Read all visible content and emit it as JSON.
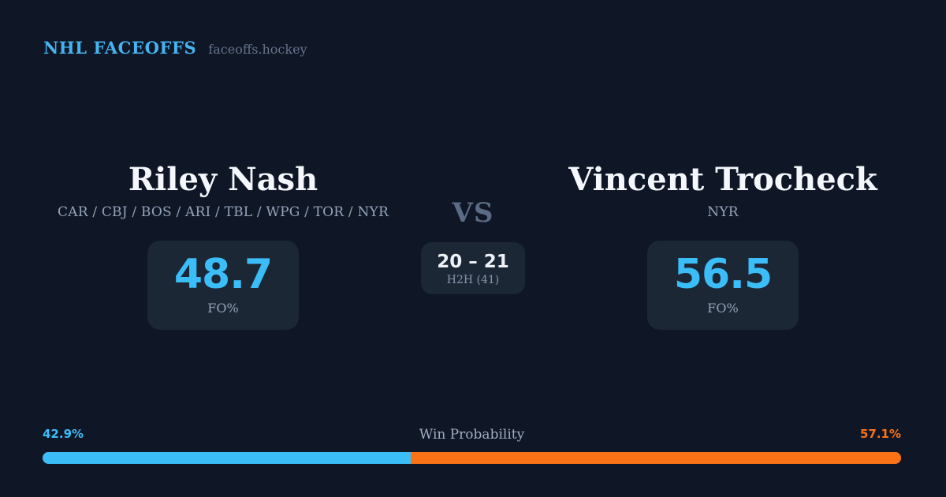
{
  "header": {
    "brand": "NHL FACEOFFS",
    "site": "faceoffs.hockey"
  },
  "players": {
    "left": {
      "name": "Riley Nash",
      "teams": "CAR / CBJ / BOS / ARI / TBL / WPG / TOR / NYR",
      "fo_pct": "48.7",
      "stat_label": "FO%"
    },
    "right": {
      "name": "Vincent Trocheck",
      "teams": "NYR",
      "fo_pct": "56.5",
      "stat_label": "FO%"
    }
  },
  "matchup": {
    "vs_label": "VS",
    "h2h_score": "20 – 21",
    "h2h_label": "H2H (41)"
  },
  "win_probability": {
    "title": "Win Probability",
    "left_pct": "42.9%",
    "right_pct": "57.1%",
    "left_value": 42.9,
    "right_value": 57.1
  },
  "colors": {
    "background": "#0f1626",
    "card": "#1c2736",
    "accent_blue": "#3bbdf8",
    "brand_blue": "#45b4ef",
    "accent_orange": "#f97316",
    "text_primary": "#f4f7fb",
    "text_muted": "#94a3b8"
  }
}
